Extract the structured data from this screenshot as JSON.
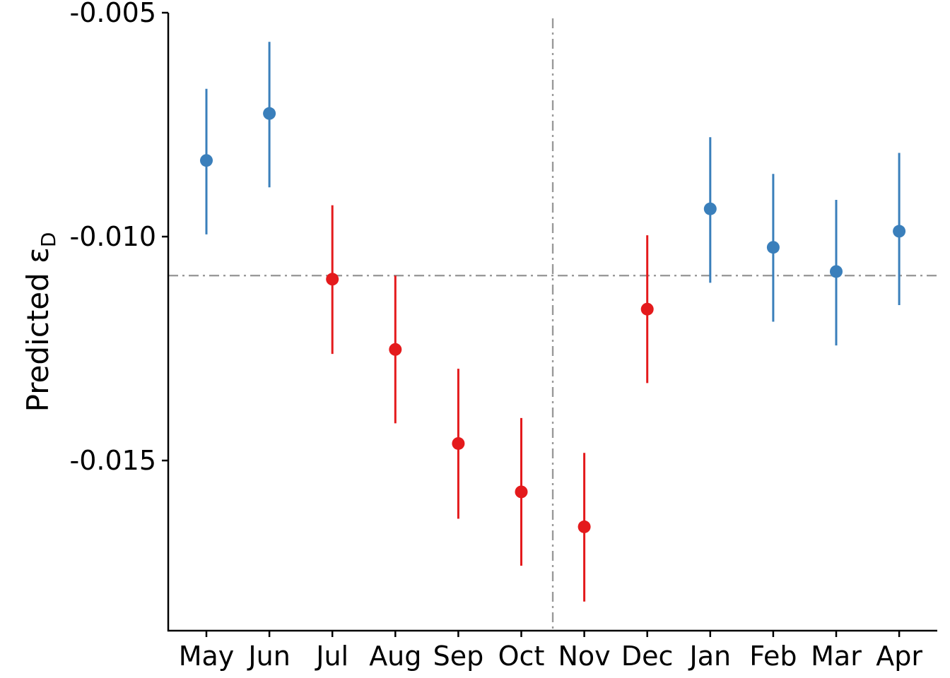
{
  "chart_data": {
    "type": "scatter",
    "title": "",
    "xlabel": "",
    "ylabel": "Predicted ε",
    "ylabel_subscript": "D",
    "categories": [
      "May",
      "Jun",
      "Jul",
      "Aug",
      "Sep",
      "Oct",
      "Nov",
      "Dec",
      "Jan",
      "Feb",
      "Mar",
      "Apr"
    ],
    "values": [
      -0.0083,
      -0.00725,
      -0.01095,
      -0.01252,
      -0.01462,
      -0.0157,
      -0.01648,
      -0.01162,
      -0.00938,
      -0.01024,
      -0.01078,
      -0.00988
    ],
    "error_low": [
      -0.00995,
      -0.0089,
      -0.01262,
      -0.01417,
      -0.0163,
      -0.01735,
      -0.01815,
      -0.01327,
      -0.01103,
      -0.0119,
      -0.01243,
      -0.01153
    ],
    "error_high": [
      -0.0067,
      -0.00565,
      -0.0093,
      -0.01087,
      -0.01295,
      -0.01405,
      -0.01483,
      -0.00997,
      -0.00778,
      -0.0086,
      -0.00918,
      -0.00813
    ],
    "point_colors": [
      "#3a7fbb",
      "#3a7fbb",
      "#e41a1c",
      "#e41a1c",
      "#e41a1c",
      "#e41a1c",
      "#e41a1c",
      "#e41a1c",
      "#3a7fbb",
      "#3a7fbb",
      "#3a7fbb",
      "#3a7fbb"
    ],
    "ylim": [
      -0.0188,
      -0.005
    ],
    "yticks": [
      -0.005,
      -0.01,
      -0.015
    ],
    "ytick_labels": [
      "-0.005",
      "-0.010",
      "-0.015"
    ],
    "reference_hline": -0.01087,
    "reference_vline_between": [
      "Oct",
      "Nov"
    ],
    "reference_color": "#999999",
    "grid": false,
    "legend": "none"
  }
}
